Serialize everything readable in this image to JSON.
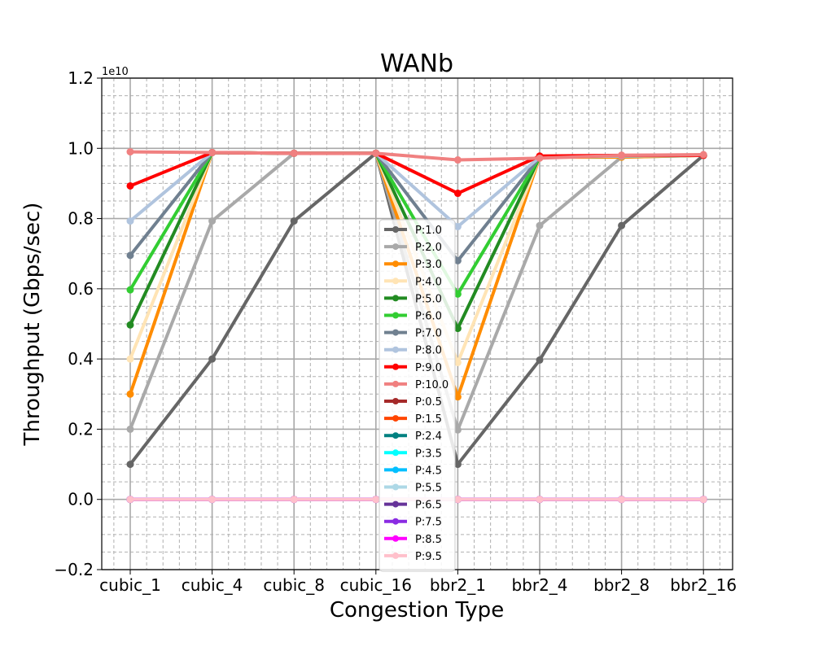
{
  "chart_data": {
    "type": "line",
    "title": "WANb",
    "xlabel": "Congestion Type",
    "ylabel": "Throughput (Gbps/sec)",
    "y_offset_label": "1e10",
    "categories": [
      "cubic_1",
      "cubic_4",
      "cubic_8",
      "cubic_16",
      "bbr2_1",
      "bbr2_4",
      "bbr2_8",
      "bbr2_16"
    ],
    "ylim": [
      -0.2,
      1.2
    ],
    "yticks": [
      -0.2,
      0.0,
      0.2,
      0.4,
      0.6,
      0.8,
      1.0,
      1.2
    ],
    "ytick_labels": [
      "−0.2",
      "0.0",
      "0.2",
      "0.4",
      "0.6",
      "0.8",
      "1.0",
      "1.2"
    ],
    "grid": true,
    "legend_position": "center",
    "series": [
      {
        "name": "P:1.0",
        "color": "#666666",
        "values": [
          0.1,
          0.4,
          0.793,
          0.986,
          0.1,
          0.397,
          0.78,
          0.98
        ]
      },
      {
        "name": "P:2.0",
        "color": "#a9a9a9",
        "values": [
          0.2,
          0.793,
          0.986,
          0.986,
          0.198,
          0.78,
          0.975,
          0.98
        ]
      },
      {
        "name": "P:3.0",
        "color": "#ff8c00",
        "values": [
          0.3,
          0.988,
          0.986,
          0.986,
          0.292,
          0.975,
          0.975,
          0.98
        ]
      },
      {
        "name": "P:4.0",
        "color": "#ffe4b5",
        "values": [
          0.4,
          0.988,
          0.986,
          0.986,
          0.39,
          0.975,
          0.978,
          0.98
        ]
      },
      {
        "name": "P:5.0",
        "color": "#228b22",
        "values": [
          0.497,
          0.988,
          0.986,
          0.986,
          0.487,
          0.975,
          0.978,
          0.98
        ]
      },
      {
        "name": "P:6.0",
        "color": "#32cd32",
        "values": [
          0.597,
          0.988,
          0.986,
          0.986,
          0.585,
          0.975,
          0.978,
          0.98
        ]
      },
      {
        "name": "P:7.0",
        "color": "#708090",
        "values": [
          0.695,
          0.988,
          0.986,
          0.986,
          0.68,
          0.975,
          0.978,
          0.98
        ]
      },
      {
        "name": "P:8.0",
        "color": "#b0c4de",
        "values": [
          0.793,
          0.988,
          0.986,
          0.986,
          0.777,
          0.975,
          0.978,
          0.98
        ]
      },
      {
        "name": "P:9.0",
        "color": "#ff0000",
        "values": [
          0.893,
          0.988,
          0.986,
          0.986,
          0.872,
          0.978,
          0.98,
          0.98
        ]
      },
      {
        "name": "P:10.0",
        "color": "#f08080",
        "values": [
          0.99,
          0.988,
          0.986,
          0.986,
          0.967,
          0.972,
          0.98,
          0.982
        ]
      },
      {
        "name": "P:0.5",
        "color": "#a52a2a",
        "values": [
          0.0,
          0.0,
          0.0,
          0.0,
          0.0,
          0.0,
          0.0,
          0.0
        ]
      },
      {
        "name": "P:1.5",
        "color": "#ff4500",
        "values": [
          0.0,
          0.0,
          0.0,
          0.0,
          0.0,
          0.0,
          0.0,
          0.0
        ]
      },
      {
        "name": "P:2.4",
        "color": "#008080",
        "values": [
          0.0,
          0.0,
          0.0,
          0.0,
          0.0,
          0.0,
          0.0,
          0.0
        ]
      },
      {
        "name": "P:3.5",
        "color": "#00ffff",
        "values": [
          0.0,
          0.0,
          0.0,
          0.0,
          0.0,
          0.0,
          0.0,
          0.0
        ]
      },
      {
        "name": "P:4.5",
        "color": "#00bfff",
        "values": [
          0.0,
          0.0,
          0.0,
          0.0,
          0.0,
          0.0,
          0.0,
          0.0
        ]
      },
      {
        "name": "P:5.5",
        "color": "#add8e6",
        "values": [
          0.0,
          0.0,
          0.0,
          0.0,
          0.0,
          0.0,
          0.0,
          0.0
        ]
      },
      {
        "name": "P:6.5",
        "color": "#663399",
        "values": [
          0.0,
          0.0,
          0.0,
          0.0,
          0.0,
          0.0,
          0.0,
          0.0
        ]
      },
      {
        "name": "P:7.5",
        "color": "#8a2be2",
        "values": [
          0.0,
          0.0,
          0.0,
          0.0,
          0.0,
          0.0,
          0.0,
          0.0
        ]
      },
      {
        "name": "P:8.5",
        "color": "#ff00ff",
        "values": [
          0.0,
          0.0,
          0.0,
          0.0,
          0.0,
          0.0,
          0.0,
          0.0
        ]
      },
      {
        "name": "P:9.5",
        "color": "#ffc0cb",
        "values": [
          0.0,
          0.0,
          0.0,
          0.0,
          0.0,
          0.0,
          0.0,
          0.0
        ]
      }
    ]
  }
}
